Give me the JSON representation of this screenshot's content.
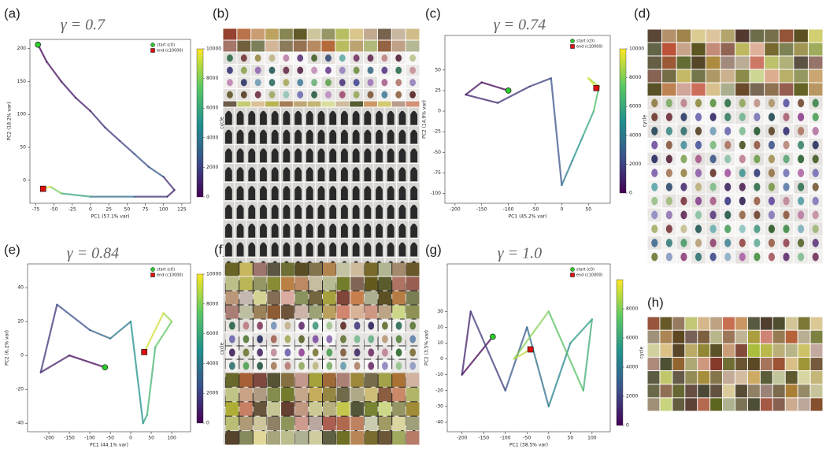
{
  "chart_data": [
    {
      "type": "line",
      "panel": "(a)",
      "title": "γ = 0.7",
      "xlabel": "PC1 (57.1% var)",
      "ylabel": "PC2 (18.2% var)",
      "xlim": [
        -83,
        137
      ],
      "ylim": [
        -35,
        214
      ],
      "xticks": [
        -75,
        -50,
        -25,
        0,
        25,
        50,
        75,
        100,
        125
      ],
      "yticks": [
        0,
        50,
        100,
        150,
        200
      ],
      "colormap": "viridis",
      "trajectory": {
        "x": [
          -72,
          -60,
          -40,
          -20,
          0,
          20,
          40,
          60,
          80,
          100,
          115,
          105,
          60,
          0,
          -40,
          -55,
          -65
        ],
        "y": [
          206,
          180,
          150,
          125,
          105,
          80,
          60,
          40,
          20,
          5,
          -15,
          -25,
          -25,
          -25,
          -20,
          -10,
          -13
        ],
        "cycle": [
          0,
          300,
          600,
          900,
          1200,
          1600,
          2000,
          2400,
          2800,
          1200,
          800,
          1500,
          3500,
          6000,
          8000,
          9500,
          10000
        ]
      },
      "markers": [
        {
          "name": "start (c0)",
          "color": "#2ecc2e",
          "shape": "circle",
          "x": -72,
          "y": 206
        },
        {
          "name": "end (c10000)",
          "color": "#dd1111",
          "shape": "square",
          "x": -65,
          "y": -13
        }
      ],
      "colorbar": {
        "label": "cycle",
        "lim": [
          0,
          10000
        ],
        "ticks": [
          0,
          2000,
          4000,
          6000,
          8000,
          10000
        ]
      }
    },
    {
      "type": "line",
      "panel": "(c)",
      "title": "γ = 0.74",
      "xlabel": "PC1 (45.2% var)",
      "ylabel": "PC2 (14.9% var)",
      "xlim": [
        -219,
        91
      ],
      "ylim": [
        -112,
        92
      ],
      "xticks": [
        -200,
        -150,
        -100,
        -50,
        0,
        50
      ],
      "yticks": [
        -100,
        -75,
        -50,
        -25,
        0,
        25,
        50
      ],
      "colormap": "viridis",
      "trajectory": {
        "x": [
          -100,
          -150,
          -180,
          -120,
          -60,
          -20,
          0,
          20,
          40,
          60,
          70,
          50,
          65
        ],
        "y": [
          25,
          35,
          20,
          10,
          30,
          40,
          -90,
          -60,
          -30,
          0,
          30,
          40,
          28
        ],
        "cycle": [
          0,
          500,
          1000,
          1500,
          2000,
          2500,
          4000,
          5000,
          6000,
          7000,
          8500,
          9500,
          10000
        ]
      },
      "markers": [
        {
          "name": "start (c0)",
          "color": "#2ecc2e",
          "shape": "circle",
          "x": -100,
          "y": 25
        },
        {
          "name": "end (c10000)",
          "color": "#dd1111",
          "shape": "square",
          "x": 65,
          "y": 28
        }
      ],
      "colorbar": {
        "label": "cycle",
        "lim": [
          0,
          10000
        ],
        "ticks": [
          0,
          2000,
          4000,
          6000,
          8000,
          10000
        ]
      }
    },
    {
      "type": "line",
      "panel": "(e)",
      "title": "γ = 0.84",
      "xlabel": "PC1 (44.1% var)",
      "ylabel": "PC2 (6.2% var)",
      "xlim": [
        -252,
        146
      ],
      "ylim": [
        -45,
        54
      ],
      "xticks": [
        -200,
        -150,
        -100,
        -50,
        0,
        50,
        100
      ],
      "yticks": [
        -40,
        -20,
        0,
        20,
        40
      ],
      "colormap": "viridis",
      "trajectory": {
        "x": [
          -63,
          -150,
          -220,
          -180,
          -100,
          -50,
          0,
          30,
          40,
          60,
          100,
          80,
          33
        ],
        "y": [
          -7,
          0,
          -10,
          30,
          15,
          10,
          20,
          -40,
          -35,
          5,
          20,
          25,
          2
        ],
        "cycle": [
          0,
          800,
          1600,
          2400,
          3200,
          4000,
          5000,
          5800,
          6500,
          7500,
          8500,
          9300,
          10000
        ]
      },
      "markers": [
        {
          "name": "start (c0)",
          "color": "#2ecc2e",
          "shape": "circle",
          "x": -63,
          "y": -7
        },
        {
          "name": "end (c10000)",
          "color": "#dd1111",
          "shape": "square",
          "x": 33,
          "y": 2
        }
      ],
      "colorbar": {
        "label": "cycle",
        "lim": [
          0,
          10000
        ],
        "ticks": [
          0,
          2000,
          4000,
          6000,
          8000,
          10000
        ]
      }
    },
    {
      "type": "line",
      "panel": "(g)",
      "title": "γ = 1.0",
      "xlabel": "PC1 (38.5% var)",
      "ylabel": "PC2 (3.5% var)",
      "xlim": [
        -234,
        142
      ],
      "ylim": [
        -46,
        60
      ],
      "xticks": [
        -200,
        -150,
        -100,
        -50,
        0,
        50,
        100
      ],
      "yticks": [
        -40,
        -30,
        -20,
        -10,
        0,
        10,
        20,
        30
      ],
      "colormap": "viridis",
      "trajectory": {
        "x": [
          -129,
          -200,
          -180,
          -100,
          -50,
          0,
          50,
          100,
          80,
          0,
          -80,
          -42
        ],
        "y": [
          14,
          -10,
          30,
          -20,
          20,
          -30,
          10,
          25,
          -20,
          30,
          0,
          6
        ],
        "cycle": [
          0,
          900,
          1800,
          2700,
          3600,
          4500,
          5400,
          6300,
          7200,
          8100,
          9000,
          10000
        ]
      },
      "markers": [
        {
          "name": "start (c0)",
          "color": "#2ecc2e",
          "shape": "circle",
          "x": -129,
          "y": 14
        },
        {
          "name": "end (c10000)",
          "color": "#dd1111",
          "shape": "square",
          "x": -42,
          "y": 6
        }
      ],
      "colorbar": {
        "label": "cycle",
        "lim": [
          0,
          10000
        ],
        "ticks": [
          0,
          2000,
          4000,
          6000,
          8000
        ]
      }
    }
  ],
  "image_panels": [
    {
      "label": "(b)"
    },
    {
      "label": "(d)"
    },
    {
      "label": "(f)"
    },
    {
      "label": "(h)"
    }
  ]
}
